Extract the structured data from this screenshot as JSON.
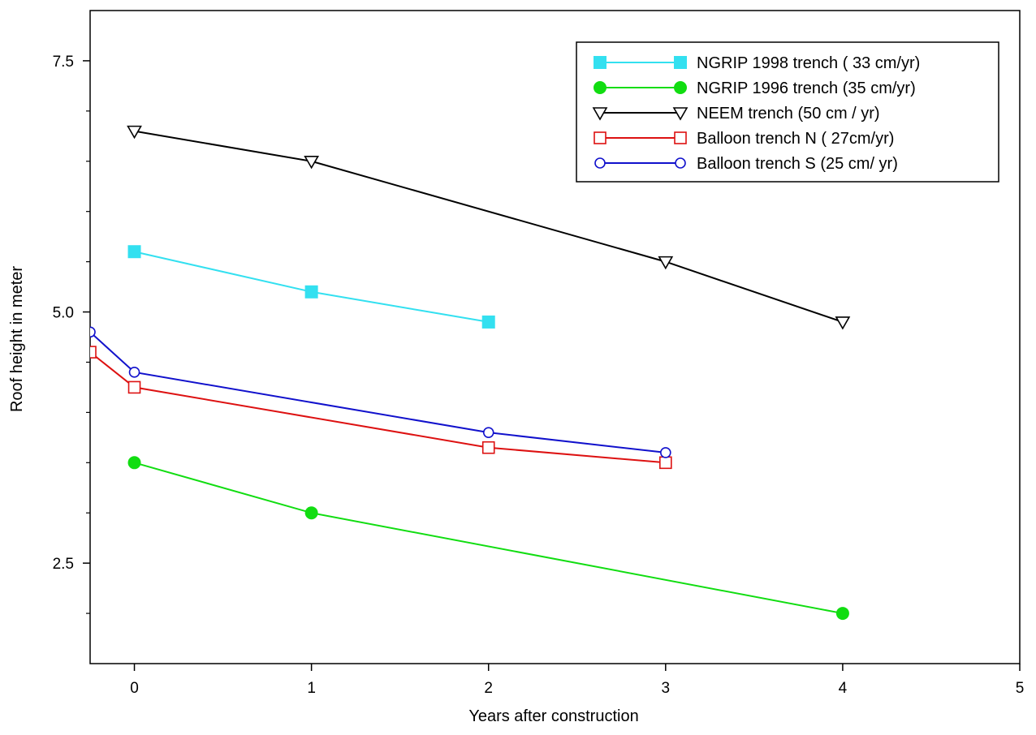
{
  "chart_data": {
    "type": "line",
    "xlabel": "Years after construction",
    "ylabel": "Roof height in meter",
    "xlim": [
      -0.25,
      5
    ],
    "ylim": [
      1.5,
      8.0
    ],
    "x_ticks": [
      0,
      1,
      2,
      3,
      4,
      5
    ],
    "x_tick_labels": [
      "0",
      "1",
      "2",
      "3",
      "4",
      "5"
    ],
    "y_major_ticks": [
      2.5,
      5.0,
      7.5
    ],
    "y_tick_labels": [
      "2.5",
      "5.0",
      "7.5"
    ],
    "y_minor_ticks": [
      2.0,
      3.0,
      3.5,
      4.0,
      4.5,
      5.5,
      6.0,
      6.5,
      7.0
    ],
    "grid": false,
    "legend_position": "top-right",
    "series": [
      {
        "name": "NGRIP 1998 trench ( 33 cm/yr)",
        "color": "#33e0f0",
        "marker": "filled-square",
        "x": [
          0,
          1,
          2
        ],
        "y": [
          5.6,
          5.2,
          4.9
        ]
      },
      {
        "name": "NGRIP 1996 trench (35 cm/yr)",
        "color": "#11dd11",
        "marker": "filled-circle",
        "x": [
          0,
          1,
          4
        ],
        "y": [
          3.5,
          3.0,
          2.0
        ]
      },
      {
        "name": "NEEM trench (50 cm / yr)",
        "color": "#000000",
        "marker": "open-triangle-down",
        "x": [
          0,
          1,
          3,
          4
        ],
        "y": [
          6.8,
          6.5,
          5.5,
          4.9
        ]
      },
      {
        "name": "Balloon trench N ( 27cm/yr)",
        "color": "#dd1111",
        "marker": "open-square",
        "x": [
          -0.25,
          0,
          2,
          3
        ],
        "y": [
          4.6,
          4.25,
          3.65,
          3.5
        ]
      },
      {
        "name": "Balloon trench S (25 cm/ yr)",
        "color": "#1111cc",
        "marker": "open-circle",
        "x": [
          -0.25,
          0,
          2,
          3
        ],
        "y": [
          4.8,
          4.4,
          3.8,
          3.6
        ]
      }
    ]
  }
}
